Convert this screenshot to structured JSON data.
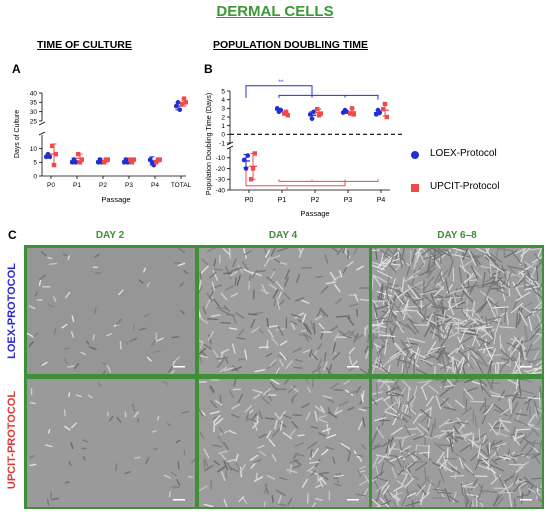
{
  "header": {
    "title": "DERMAL CELLS"
  },
  "colors": {
    "loex": "#1f2fd6",
    "upcit": "#ef4b4b",
    "accent_green": "#3f8f39"
  },
  "chart_data": [
    {
      "panel": "A",
      "title": "TIME OF CULTURE",
      "type": "scatter",
      "xlabel": "Passage",
      "ylabel": "Days of Culture",
      "categories": [
        "P0",
        "P1",
        "P2",
        "P3",
        "P4",
        "TOTAL"
      ],
      "y_axis": {
        "broken": true,
        "lower_range": [
          0,
          15
        ],
        "lower_ticks": [
          0,
          5,
          10
        ],
        "upper_range": [
          25,
          40
        ],
        "upper_ticks": [
          25,
          30,
          35,
          40
        ]
      },
      "series": [
        {
          "name": "LOEX-Protocol",
          "marker": "circle",
          "points": [
            [
              7,
              8,
              7
            ],
            [
              5,
              6,
              5
            ],
            [
              5,
              6,
              5
            ],
            [
              5,
              6,
              5
            ],
            [
              6,
              5,
              4
            ],
            [
              33,
              35,
              31
            ]
          ],
          "mean": [
            7.3,
            5.5,
            5.5,
            5.5,
            5.5,
            33
          ],
          "sd": [
            0.6,
            1.0,
            1.0,
            1.0,
            1.5,
            2
          ]
        },
        {
          "name": "UPCIT-Protocol",
          "marker": "square",
          "points": [
            [
              11,
              4,
              8
            ],
            [
              8,
              5,
              6
            ],
            [
              5,
              6,
              6
            ],
            [
              6,
              5,
              6
            ],
            [
              5,
              6,
              6
            ],
            [
              34,
              37,
              35
            ]
          ],
          "mean": [
            8,
            6.5,
            5.7,
            5.7,
            5.7,
            35
          ],
          "sd": [
            3.7,
            1.5,
            0.6,
            0.6,
            0.6,
            2
          ]
        }
      ]
    },
    {
      "panel": "B",
      "title": "POPULATION DOUBLING TIME",
      "type": "scatter",
      "xlabel": "Passage",
      "ylabel": "Population Doubling Time (Days)",
      "categories": [
        "P0",
        "P1",
        "P2",
        "P3",
        "P4"
      ],
      "y_axis": {
        "broken": true,
        "upper_range": [
          -1,
          5
        ],
        "upper_ticks": [
          -1,
          0,
          1,
          2,
          3,
          4,
          5
        ],
        "lower_range": [
          -40,
          0
        ],
        "lower_ticks": [
          -40,
          -30,
          -20,
          -10,
          0
        ]
      },
      "reference_line": {
        "y": 0,
        "style": "dashed"
      },
      "series": [
        {
          "name": "LOEX-Protocol",
          "marker": "circle",
          "points": [
            [
              -12,
              -20,
              -8
            ],
            [
              3.0,
              2.6,
              2.8
            ],
            [
              2.3,
              1.8,
              2.6
            ],
            [
              2.5,
              2.8,
              2.6
            ],
            [
              2.3,
              2.8,
              2.5
            ]
          ],
          "mean": [
            -13,
            2.8,
            2.2,
            2.6,
            2.5
          ],
          "sd": [
            6,
            0.2,
            0.4,
            0.15,
            0.25
          ]
        },
        {
          "name": "UPCIT-Protocol",
          "marker": "square",
          "points": [
            [
              -30,
              -20,
              -6
            ],
            [
              2.4,
              2.6,
              2.2
            ],
            [
              2.9,
              2.2,
              2.4
            ],
            [
              2.4,
              3.0,
              2.3
            ],
            [
              2.9,
              3.5,
              2.0
            ]
          ],
          "mean": [
            -18,
            2.4,
            2.5,
            2.6,
            2.8
          ],
          "sd": [
            12,
            0.2,
            0.4,
            0.35,
            0.7
          ]
        }
      ],
      "significance": [
        {
          "label": "**",
          "from": "P0",
          "to": [
            "P1",
            "P2",
            "P3",
            "P4"
          ],
          "series": "LOEX-Protocol"
        },
        {
          "label": "*",
          "from": "P0",
          "to": [
            "P1",
            "P2",
            "P3",
            "P4"
          ],
          "series": "UPCIT-Protocol"
        }
      ]
    }
  ],
  "legend": {
    "items": [
      {
        "label": "LOEX-Protocol"
      },
      {
        "label": "UPCIT-Protocol"
      }
    ]
  },
  "panel_c": {
    "label": "C",
    "days": [
      "DAY 2",
      "DAY 4",
      "DAY 6–8"
    ],
    "rows": [
      {
        "label": "LOEX-PROTOCOL"
      },
      {
        "label": "UPCIT-PROTOCOL"
      }
    ],
    "confluence": [
      [
        0.05,
        0.35,
        0.95
      ],
      [
        0.02,
        0.3,
        0.7
      ]
    ]
  }
}
